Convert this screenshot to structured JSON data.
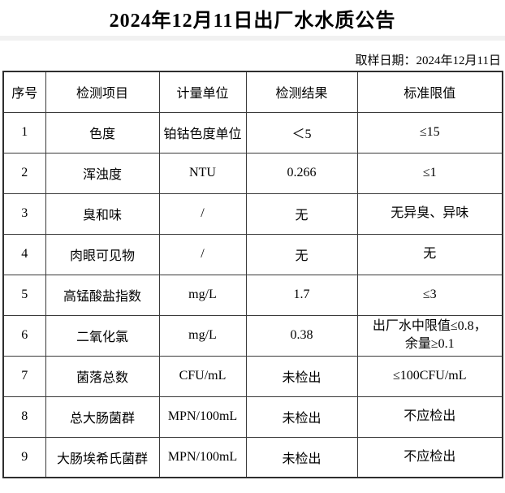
{
  "page": {
    "title": "2024年12月11日出厂水水质公告",
    "sampling_date": "取样日期：2024年12月11日"
  },
  "colors": {
    "background": "#ffffff",
    "text": "#000000",
    "border": "#3a3a3a",
    "divider_strip": "#f1f1f1"
  },
  "table": {
    "headers": [
      "序号",
      "检测项目",
      "计量单位",
      "检测结果",
      "标准限值"
    ],
    "rows": [
      [
        "1",
        "色度",
        "铂钴色度单位",
        "＜5",
        "≤15"
      ],
      [
        "2",
        "浑浊度",
        "NTU",
        "0.266",
        "≤1"
      ],
      [
        "3",
        "臭和味",
        "/",
        "无",
        "无异臭、异味"
      ],
      [
        "4",
        "肉眼可见物",
        "/",
        "无",
        "无"
      ],
      [
        "5",
        "高锰酸盐指数",
        "mg/L",
        "1.7",
        "≤3"
      ],
      [
        "6",
        "二氧化氯",
        "mg/L",
        "0.38",
        "出厂水中限值≤0.8，\n余量≥0.1"
      ],
      [
        "7",
        "菌落总数",
        "CFU/mL",
        "未检出",
        "≤100CFU/mL"
      ],
      [
        "8",
        "总大肠菌群",
        "MPN/100mL",
        "未检出",
        "不应检出"
      ],
      [
        "9",
        "大肠埃希氏菌群",
        "MPN/100mL",
        "未检出",
        "不应检出"
      ]
    ]
  }
}
